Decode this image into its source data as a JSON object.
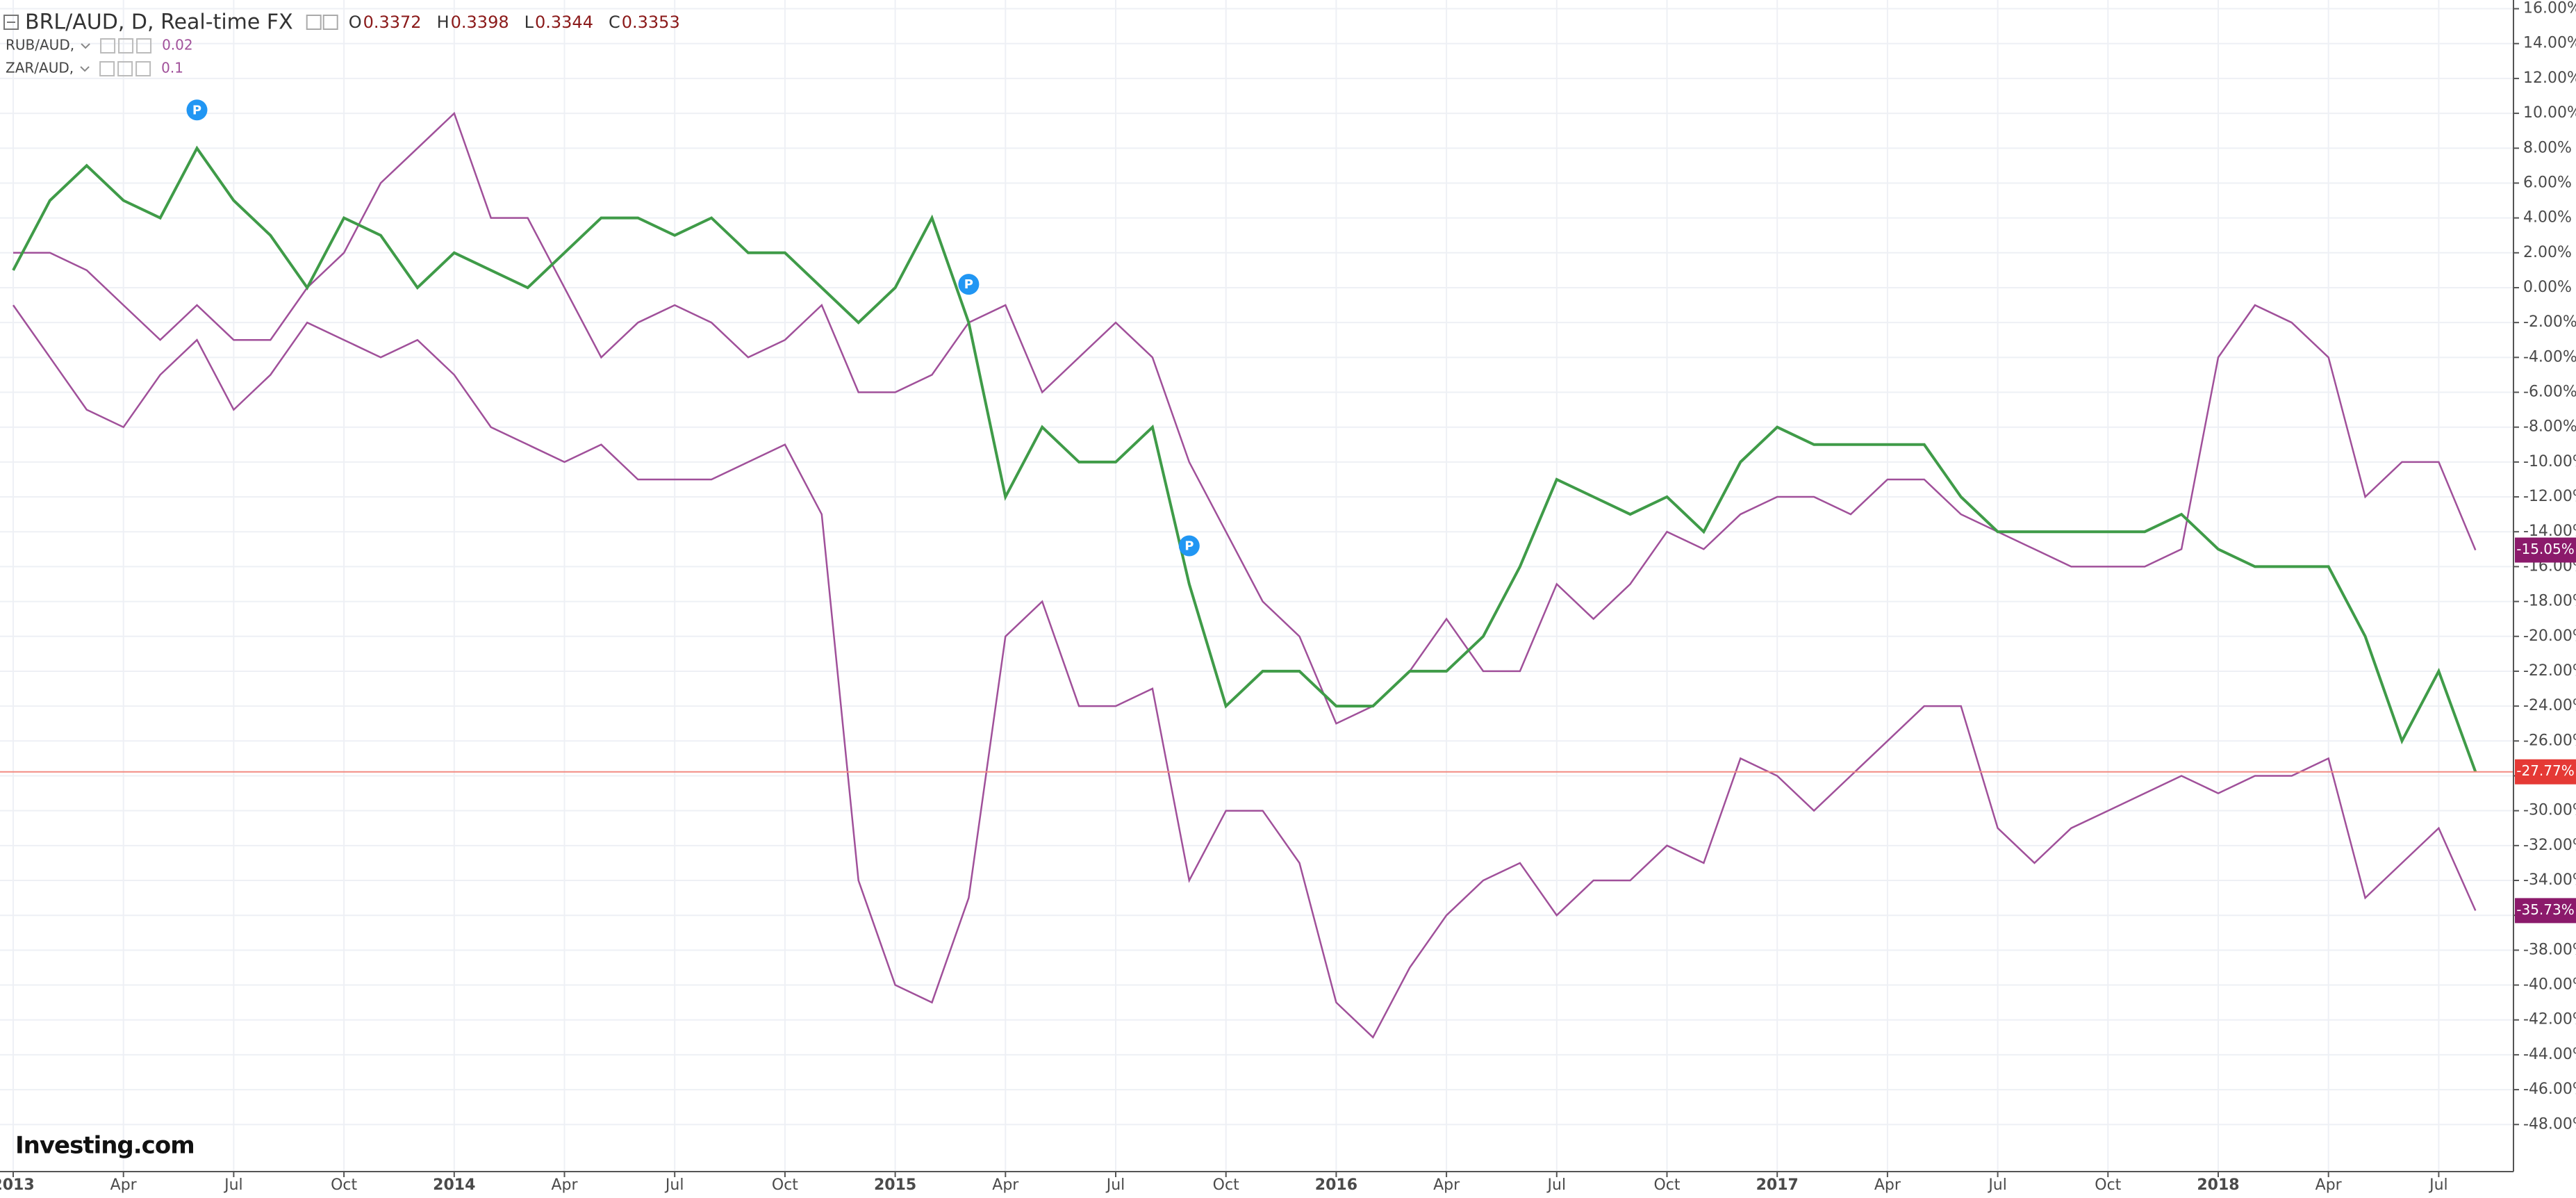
{
  "chart_data": {
    "type": "line",
    "title": "BRL/AUD, D, Real-time FX",
    "quote": [
      {
        "label": "O",
        "value": 0.3372
      },
      {
        "label": "H",
        "value": 0.3398
      },
      {
        "label": "L",
        "value": 0.3344
      },
      {
        "label": "C",
        "value": 0.3353
      }
    ],
    "x": [
      "2013-01",
      "2013-02",
      "2013-03",
      "2013-04",
      "2013-05",
      "2013-06",
      "2013-07",
      "2013-08",
      "2013-09",
      "2013-10",
      "2013-11",
      "2013-12",
      "2014-01",
      "2014-02",
      "2014-03",
      "2014-04",
      "2014-05",
      "2014-06",
      "2014-07",
      "2014-08",
      "2014-09",
      "2014-10",
      "2014-11",
      "2014-12",
      "2015-01",
      "2015-02",
      "2015-03",
      "2015-04",
      "2015-05",
      "2015-06",
      "2015-07",
      "2015-08",
      "2015-09",
      "2015-10",
      "2015-11",
      "2015-12",
      "2016-01",
      "2016-02",
      "2016-03",
      "2016-04",
      "2016-05",
      "2016-06",
      "2016-07",
      "2016-08",
      "2016-09",
      "2016-10",
      "2016-11",
      "2016-12",
      "2017-01",
      "2017-02",
      "2017-03",
      "2017-04",
      "2017-05",
      "2017-06",
      "2017-07",
      "2017-08",
      "2017-09",
      "2017-10",
      "2017-11",
      "2017-12",
      "2018-01",
      "2018-02",
      "2018-03",
      "2018-04",
      "2018-05",
      "2018-06",
      "2018-07",
      "2018-08"
    ],
    "series": [
      {
        "name": "BRL/AUD, D, Real-time FX",
        "color": "#3f9b48",
        "values": [
          1,
          5,
          7,
          5,
          4,
          8,
          5,
          3,
          0,
          4,
          3,
          0,
          2,
          1,
          0,
          2,
          4,
          4,
          3,
          4,
          2,
          2,
          0,
          -2,
          0,
          4,
          -2,
          -12,
          -8,
          -10,
          -10,
          -8,
          -17,
          -24,
          -22,
          -22,
          -24,
          -24,
          -22,
          -22,
          -20,
          -16,
          -11,
          -12,
          -13,
          -12,
          -14,
          -10,
          -8,
          -9,
          -9,
          -9,
          -9,
          -12,
          -14,
          -14,
          -14,
          -14,
          -14,
          -13,
          -15,
          -16,
          -16,
          -16,
          -20,
          -26,
          -22,
          -27.77
        ],
        "value_labels": [
          null,
          null,
          null,
          null,
          null,
          null,
          null,
          null,
          null,
          null,
          null,
          null,
          null,
          null,
          null,
          null,
          null,
          null,
          null,
          null,
          null,
          null,
          null,
          null,
          null,
          null,
          null,
          null,
          null,
          null,
          null,
          null,
          null,
          null,
          null,
          null,
          null,
          null,
          null,
          null,
          null,
          null,
          null,
          null,
          null,
          null,
          null,
          null,
          null,
          null,
          null,
          null,
          null,
          null,
          null,
          null,
          null,
          null,
          null,
          null,
          null,
          null,
          null,
          null,
          null,
          null,
          null,
          "-27.77%"
        ],
        "label_color": "#e53935"
      },
      {
        "name": "RUB/AUD,",
        "legend_value": 0.02,
        "color": "#a0509a",
        "values": [
          -1,
          -4,
          -7,
          -8,
          -5,
          -3,
          -7,
          -5,
          -2,
          -3,
          -4,
          -3,
          -5,
          -8,
          -9,
          -10,
          -9,
          -11,
          -11,
          -11,
          -10,
          -9,
          -13,
          -34,
          -40,
          -41,
          -35,
          -20,
          -18,
          -24,
          -24,
          -23,
          -34,
          -30,
          -30,
          -33,
          -41,
          -43,
          -39,
          -36,
          -34,
          -33,
          -36,
          -34,
          -34,
          -32,
          -33,
          -27,
          -28,
          -30,
          -28,
          -26,
          -24,
          -24,
          -31,
          -33,
          -31,
          -30,
          -29,
          -28,
          -29,
          -28,
          -28,
          -27,
          -35,
          -33,
          -31,
          -35.73
        ],
        "value_labels": [
          null,
          null,
          null,
          null,
          null,
          null,
          null,
          null,
          null,
          null,
          null,
          null,
          null,
          null,
          null,
          null,
          null,
          null,
          null,
          null,
          null,
          null,
          null,
          null,
          null,
          null,
          null,
          null,
          null,
          null,
          null,
          null,
          null,
          null,
          null,
          null,
          null,
          null,
          null,
          null,
          null,
          null,
          null,
          null,
          null,
          null,
          null,
          null,
          null,
          null,
          null,
          null,
          null,
          null,
          null,
          null,
          null,
          null,
          null,
          null,
          null,
          null,
          null,
          null,
          null,
          null,
          null,
          "-35.73%"
        ],
        "label_color": "#8b1a6b"
      },
      {
        "name": "ZAR/AUD,",
        "legend_value": 0.1,
        "color": "#a0509a",
        "values": [
          2,
          2,
          1,
          -1,
          -3,
          -1,
          -3,
          -3,
          0,
          2,
          6,
          8,
          10,
          4,
          4,
          0,
          -4,
          -2,
          -1,
          -2,
          -4,
          -3,
          -1,
          -6,
          -6,
          -5,
          -2,
          -1,
          -6,
          -4,
          -2,
          -4,
          -10,
          -14,
          -18,
          -20,
          -25,
          -24,
          -22,
          -19,
          -22,
          -22,
          -17,
          -19,
          -17,
          -14,
          -15,
          -13,
          -12,
          -12,
          -13,
          -11,
          -11,
          -13,
          -14,
          -15,
          -16,
          -16,
          -16,
          -15,
          -4,
          -1,
          -2,
          -4,
          -12,
          -10,
          -10,
          -15.05
        ],
        "value_labels": [
          null,
          null,
          null,
          null,
          null,
          null,
          null,
          null,
          null,
          null,
          null,
          null,
          null,
          null,
          null,
          null,
          null,
          null,
          null,
          null,
          null,
          null,
          null,
          null,
          null,
          null,
          null,
          null,
          null,
          null,
          null,
          null,
          null,
          null,
          null,
          null,
          null,
          null,
          null,
          null,
          null,
          null,
          null,
          null,
          null,
          null,
          null,
          null,
          null,
          null,
          null,
          null,
          null,
          null,
          null,
          null,
          null,
          null,
          null,
          null,
          null,
          null,
          null,
          null,
          null,
          null,
          null,
          "-15.05%"
        ],
        "label_color": "#8b1a6b"
      }
    ],
    "annotations": [
      {
        "x": "2013-06",
        "text": "P"
      },
      {
        "x": "2015-03",
        "text": "P"
      },
      {
        "x": "2015-09",
        "text": "P"
      }
    ],
    "source": "Investing.com",
    "ylim": [
      -50.7,
      16.5
    ],
    "yticks": [
      {
        "value": 16,
        "label": "16.00%"
      },
      {
        "value": 14,
        "label": "14.00%"
      },
      {
        "value": 12,
        "label": "12.00%"
      },
      {
        "value": 10,
        "label": "10.00%"
      },
      {
        "value": 8,
        "label": "8.00%"
      },
      {
        "value": 6,
        "label": "6.00%"
      },
      {
        "value": 4,
        "label": "4.00%"
      },
      {
        "value": 2,
        "label": "2.00%"
      },
      {
        "value": 0,
        "label": "0.00%"
      },
      {
        "value": -2,
        "label": "-2.00%"
      },
      {
        "value": -4,
        "label": "-4.00%"
      },
      {
        "value": -6,
        "label": "-6.00%"
      },
      {
        "value": -8,
        "label": "-8.00%"
      },
      {
        "value": -10,
        "label": "-10.00%"
      },
      {
        "value": -12,
        "label": "-12.00%"
      },
      {
        "value": -14,
        "label": "-14.00%"
      },
      {
        "value": -16,
        "label": "-16.00%"
      },
      {
        "value": -18,
        "label": "-18.00%"
      },
      {
        "value": -20,
        "label": "-20.00%"
      },
      {
        "value": -22,
        "label": "-22.00%"
      },
      {
        "value": -24,
        "label": "-24.00%"
      },
      {
        "value": -26,
        "label": "-26.00%"
      },
      {
        "value": -28,
        "label": "-28.00%"
      },
      {
        "value": -30,
        "label": "-30.00%"
      },
      {
        "value": -32,
        "label": "-32.00%"
      },
      {
        "value": -34,
        "label": "-34.00%"
      },
      {
        "value": -36,
        "label": "-36.00%"
      },
      {
        "value": -38,
        "label": "-38.00%"
      },
      {
        "value": -40,
        "label": "-40.00%"
      },
      {
        "value": -42,
        "label": "-42.00%"
      },
      {
        "value": -44,
        "label": "-44.00%"
      },
      {
        "value": -46,
        "label": "-46.00%"
      },
      {
        "value": -48,
        "label": "-48.00%"
      }
    ],
    "xticks": [
      {
        "value": "2013-01",
        "label": "2013"
      },
      {
        "value": "2013-04",
        "label": "Apr"
      },
      {
        "value": "2013-07",
        "label": "Jul"
      },
      {
        "value": "2013-10",
        "label": "Oct"
      },
      {
        "value": "2014-01",
        "label": "2014"
      },
      {
        "value": "2014-04",
        "label": "Apr"
      },
      {
        "value": "2014-07",
        "label": "Jul"
      },
      {
        "value": "2014-10",
        "label": "Oct"
      },
      {
        "value": "2015-01",
        "label": "2015"
      },
      {
        "value": "2015-04",
        "label": "Apr"
      },
      {
        "value": "2015-07",
        "label": "Jul"
      },
      {
        "value": "2015-10",
        "label": "Oct"
      },
      {
        "value": "2016-01",
        "label": "2016"
      },
      {
        "value": "2016-04",
        "label": "Apr"
      },
      {
        "value": "2016-07",
        "label": "Jul"
      },
      {
        "value": "2016-10",
        "label": "Oct"
      },
      {
        "value": "2017-01",
        "label": "2017"
      },
      {
        "value": "2017-04",
        "label": "Apr"
      },
      {
        "value": "2017-07",
        "label": "Jul"
      },
      {
        "value": "2017-10",
        "label": "Oct"
      },
      {
        "value": "2018-01",
        "label": "2018"
      },
      {
        "value": "2018-04",
        "label": "Apr"
      },
      {
        "value": "2018-07",
        "label": "Jul"
      }
    ],
    "grid": true
  }
}
